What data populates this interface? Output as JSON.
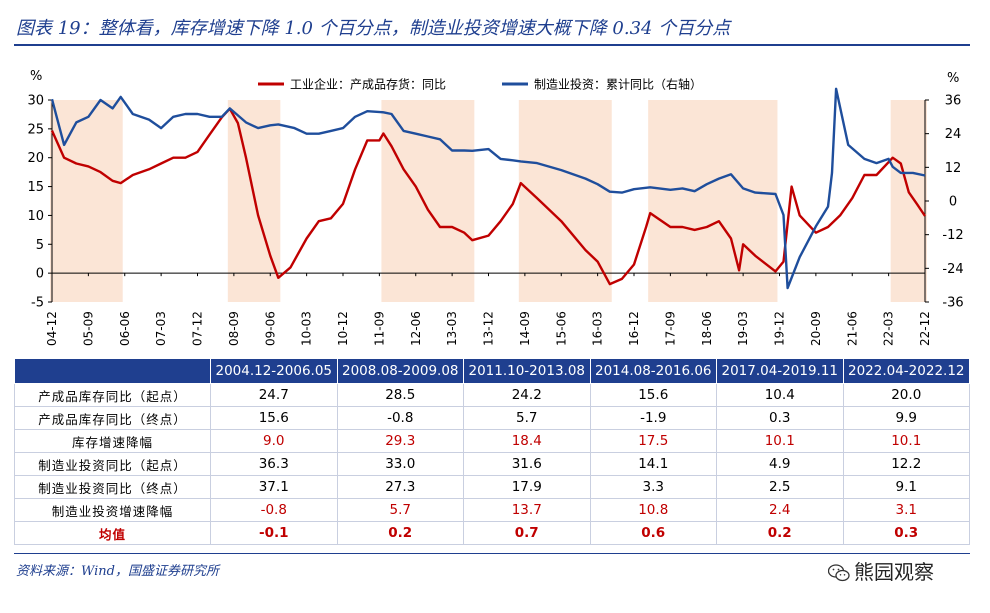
{
  "title": "图表 19：整体看，库存增速下降 1.0 个百分点，制造业投资增速大概下降 0.34 个百分点",
  "source": "资料来源：Wind，国盛证券研究所",
  "watermark": "熊园观察",
  "colors": {
    "accent": "#1f3f8f",
    "inventory": "#c00000",
    "investment": "#1f4e9c",
    "shade": "#fbe5d6"
  },
  "chart_data": {
    "type": "line",
    "y_unit_left": "%",
    "y_unit_right": "%",
    "ylim_left": [
      -5,
      30
    ],
    "ylim_right": [
      -36,
      36
    ],
    "yticks_left": [
      "30",
      "25",
      "20",
      "15",
      "10",
      "5",
      "0",
      "-5"
    ],
    "yticks_right": [
      "36",
      "24",
      "12",
      "0",
      "-12",
      "-24",
      "-36"
    ],
    "x_tick_labels": [
      "04-12",
      "05-09",
      "06-06",
      "07-03",
      "07-12",
      "08-09",
      "09-06",
      "10-03",
      "10-12",
      "11-09",
      "12-06",
      "13-03",
      "13-12",
      "14-09",
      "15-06",
      "16-03",
      "16-12",
      "17-09",
      "18-06",
      "19-03",
      "19-12",
      "20-09",
      "21-06",
      "22-03",
      "22-12"
    ],
    "legend": "top",
    "shaded_periods": [
      [
        "2004-12",
        "2006-05"
      ],
      [
        "2008-08",
        "2009-08"
      ],
      [
        "2011-10",
        "2013-08"
      ],
      [
        "2014-08",
        "2016-06"
      ],
      [
        "2017-04",
        "2019-11"
      ],
      [
        "2022-04",
        "2022-12"
      ]
    ],
    "series": [
      {
        "name": "工业企业：产成品存货：同比",
        "axis": "left",
        "color": "#c00000",
        "points": [
          [
            "2004-12",
            24.7
          ],
          [
            "2005-03",
            20
          ],
          [
            "2005-06",
            19
          ],
          [
            "2005-09",
            18.5
          ],
          [
            "2005-12",
            17.5
          ],
          [
            "2006-03",
            16
          ],
          [
            "2006-05",
            15.6
          ],
          [
            "2006-08",
            17
          ],
          [
            "2006-12",
            18
          ],
          [
            "2007-03",
            19
          ],
          [
            "2007-06",
            20
          ],
          [
            "2007-09",
            20
          ],
          [
            "2007-12",
            21
          ],
          [
            "2008-03",
            24
          ],
          [
            "2008-06",
            27
          ],
          [
            "2008-08",
            28.5
          ],
          [
            "2008-10",
            26
          ],
          [
            "2008-12",
            20
          ],
          [
            "2009-03",
            10
          ],
          [
            "2009-06",
            3
          ],
          [
            "2009-08",
            -0.8
          ],
          [
            "2009-11",
            1
          ],
          [
            "2010-03",
            6
          ],
          [
            "2010-06",
            9
          ],
          [
            "2010-09",
            9.5
          ],
          [
            "2010-12",
            12
          ],
          [
            "2011-03",
            18
          ],
          [
            "2011-06",
            23
          ],
          [
            "2011-09",
            23
          ],
          [
            "2011-10",
            24.2
          ],
          [
            "2011-12",
            22
          ],
          [
            "2012-03",
            18
          ],
          [
            "2012-06",
            15
          ],
          [
            "2012-09",
            11
          ],
          [
            "2012-12",
            8
          ],
          [
            "2013-03",
            8
          ],
          [
            "2013-06",
            7
          ],
          [
            "2013-08",
            5.7
          ],
          [
            "2013-12",
            6.5
          ],
          [
            "2014-03",
            9
          ],
          [
            "2014-06",
            12
          ],
          [
            "2014-08",
            15.6
          ],
          [
            "2014-12",
            13
          ],
          [
            "2015-06",
            9
          ],
          [
            "2015-12",
            4
          ],
          [
            "2016-03",
            2
          ],
          [
            "2016-06",
            -1.9
          ],
          [
            "2016-09",
            -1
          ],
          [
            "2016-12",
            1.5
          ],
          [
            "2017-03",
            8
          ],
          [
            "2017-04",
            10.4
          ],
          [
            "2017-09",
            8
          ],
          [
            "2017-12",
            8
          ],
          [
            "2018-03",
            7.5
          ],
          [
            "2018-06",
            8
          ],
          [
            "2018-09",
            9
          ],
          [
            "2018-12",
            6
          ],
          [
            "2019-02",
            0.5
          ],
          [
            "2019-03",
            5
          ],
          [
            "2019-06",
            3
          ],
          [
            "2019-11",
            0.3
          ],
          [
            "2020-01",
            2
          ],
          [
            "2020-03",
            15
          ],
          [
            "2020-05",
            10
          ],
          [
            "2020-09",
            7
          ],
          [
            "2020-12",
            8
          ],
          [
            "2021-03",
            10
          ],
          [
            "2021-06",
            13
          ],
          [
            "2021-09",
            17
          ],
          [
            "2021-12",
            17
          ],
          [
            "2022-04",
            20
          ],
          [
            "2022-06",
            19
          ],
          [
            "2022-08",
            14
          ],
          [
            "2022-10",
            12
          ],
          [
            "2022-12",
            9.9
          ]
        ]
      },
      {
        "name": "制造业投资：累计同比（右轴）",
        "axis": "right",
        "color": "#1f4e9c",
        "points": [
          [
            "2004-12",
            36.3
          ],
          [
            "2005-03",
            20
          ],
          [
            "2005-06",
            28
          ],
          [
            "2005-09",
            30
          ],
          [
            "2005-12",
            36
          ],
          [
            "2006-03",
            33
          ],
          [
            "2006-05",
            37.1
          ],
          [
            "2006-08",
            31
          ],
          [
            "2006-12",
            29
          ],
          [
            "2007-03",
            26
          ],
          [
            "2007-06",
            30
          ],
          [
            "2007-09",
            31
          ],
          [
            "2007-12",
            31
          ],
          [
            "2008-03",
            30
          ],
          [
            "2008-06",
            30
          ],
          [
            "2008-08",
            33.0
          ],
          [
            "2008-12",
            28
          ],
          [
            "2009-03",
            26
          ],
          [
            "2009-06",
            27
          ],
          [
            "2009-08",
            27.3
          ],
          [
            "2009-12",
            26
          ],
          [
            "2010-03",
            24
          ],
          [
            "2010-06",
            24
          ],
          [
            "2010-09",
            25
          ],
          [
            "2010-12",
            26
          ],
          [
            "2011-03",
            30
          ],
          [
            "2011-06",
            32
          ],
          [
            "2011-10",
            31.6
          ],
          [
            "2011-12",
            31
          ],
          [
            "2012-03",
            25
          ],
          [
            "2012-06",
            24
          ],
          [
            "2012-09",
            23
          ],
          [
            "2012-12",
            22
          ],
          [
            "2013-03",
            18
          ],
          [
            "2013-06",
            18
          ],
          [
            "2013-08",
            17.9
          ],
          [
            "2013-12",
            18.5
          ],
          [
            "2014-03",
            15
          ],
          [
            "2014-06",
            14.5
          ],
          [
            "2014-08",
            14.1
          ],
          [
            "2014-12",
            13.5
          ],
          [
            "2015-06",
            11
          ],
          [
            "2015-12",
            8
          ],
          [
            "2016-03",
            6
          ],
          [
            "2016-06",
            3.3
          ],
          [
            "2016-09",
            3
          ],
          [
            "2016-12",
            4.2
          ],
          [
            "2017-04",
            4.9
          ],
          [
            "2017-09",
            4
          ],
          [
            "2017-12",
            4.5
          ],
          [
            "2018-03",
            3.5
          ],
          [
            "2018-06",
            6
          ],
          [
            "2018-09",
            8
          ],
          [
            "2018-12",
            9.5
          ],
          [
            "2019-03",
            4.5
          ],
          [
            "2019-06",
            3
          ],
          [
            "2019-11",
            2.5
          ],
          [
            "2020-01",
            -5
          ],
          [
            "2020-02",
            -31
          ],
          [
            "2020-05",
            -20
          ],
          [
            "2020-09",
            -9
          ],
          [
            "2020-12",
            -2
          ],
          [
            "2021-01",
            10
          ],
          [
            "2021-02",
            40
          ],
          [
            "2021-05",
            20
          ],
          [
            "2021-09",
            15
          ],
          [
            "2021-12",
            13.5
          ],
          [
            "2022-03",
            15
          ],
          [
            "2022-04",
            12.2
          ],
          [
            "2022-06",
            10
          ],
          [
            "2022-09",
            10
          ],
          [
            "2022-12",
            9.1
          ]
        ]
      }
    ]
  },
  "table": {
    "headers": [
      "",
      "2004.12-2006.05",
      "2008.08-2009.08",
      "2011.10-2013.08",
      "2014.08-2016.06",
      "2017.04-2019.11",
      "2022.04-2022.12"
    ],
    "rows": [
      {
        "label": "产成品库存同比（起点）",
        "values": [
          "24.7",
          "28.5",
          "24.2",
          "15.6",
          "10.4",
          "20.0"
        ]
      },
      {
        "label": "产成品库存同比（终点）",
        "values": [
          "15.6",
          "-0.8",
          "5.7",
          "-1.9",
          "0.3",
          "9.9"
        ]
      },
      {
        "label": "库存增速降幅",
        "values": [
          "9.0",
          "29.3",
          "18.4",
          "17.5",
          "10.1",
          "10.1"
        ],
        "highlight": true
      },
      {
        "label": "制造业投资同比（起点）",
        "values": [
          "36.3",
          "33.0",
          "31.6",
          "14.1",
          "4.9",
          "12.2"
        ]
      },
      {
        "label": "制造业投资同比（终点）",
        "values": [
          "37.1",
          "27.3",
          "17.9",
          "3.3",
          "2.5",
          "9.1"
        ]
      },
      {
        "label": "制造业投资增速降幅",
        "values": [
          "-0.8",
          "5.7",
          "13.7",
          "10.8",
          "2.4",
          "3.1"
        ],
        "highlight": true
      },
      {
        "label": "均值",
        "values": [
          "-0.1",
          "0.2",
          "0.7",
          "0.6",
          "0.2",
          "0.3"
        ],
        "avg": true
      }
    ]
  }
}
